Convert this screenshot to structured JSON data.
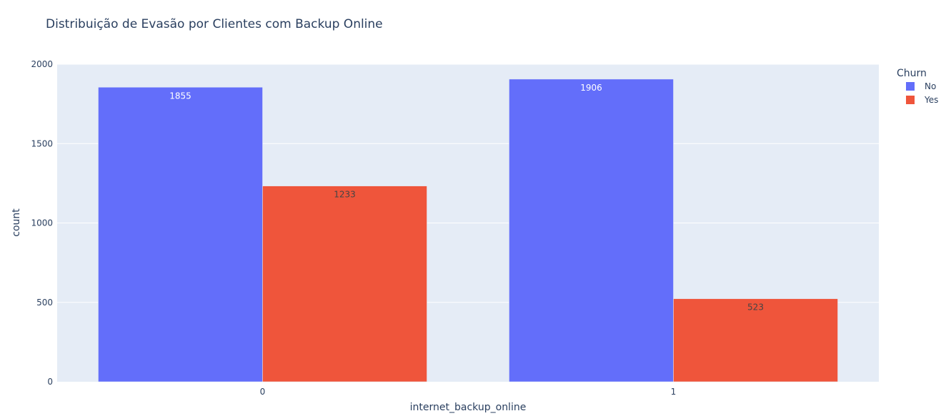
{
  "chart_data": {
    "type": "bar",
    "barmode": "group",
    "title": "Distribuição de Evasão por Clientes com Backup Online",
    "xlabel": "internet_backup_online",
    "ylabel": "count",
    "categories": [
      "0",
      "1"
    ],
    "ylim": [
      0,
      2000
    ],
    "yticks": [
      0,
      500,
      1000,
      1500,
      2000
    ],
    "grid": true,
    "legend": {
      "title": "Churn",
      "placement": "top-right"
    },
    "series": [
      {
        "name": "No",
        "color": "#636efa",
        "label_color": "#ffffff",
        "values": [
          1855,
          1906
        ]
      },
      {
        "name": "Yes",
        "color": "#ef553b",
        "label_color": "#444444",
        "values": [
          1233,
          523
        ]
      }
    ]
  },
  "colors": {
    "plot_bg": "#e5ecf6",
    "grid": "#ffffff",
    "text": "#2a3f5f"
  }
}
